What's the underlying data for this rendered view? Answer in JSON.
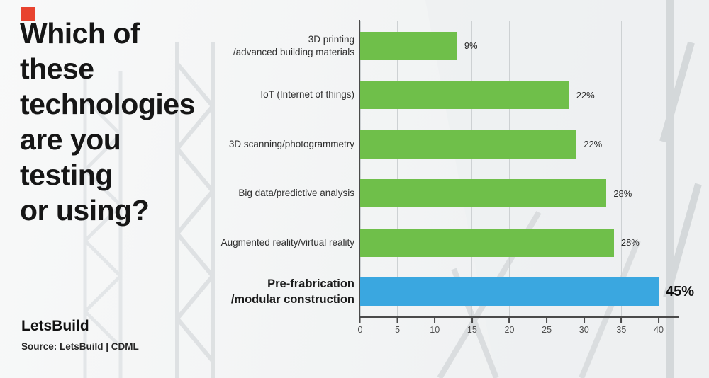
{
  "accent_red": "#e8432f",
  "title": "Which of\nthese\ntechnologies\nare you\ntesting\nor using?",
  "brand": "LetsBuild",
  "source": "Source: LetsBuild | CDML",
  "chart_data": {
    "type": "bar",
    "orientation": "horizontal",
    "title": "Which of these technologies are you testing or using?",
    "unit": "%",
    "categories": [
      "3D printing /advanced building materials",
      "IoT (Internet of things)",
      "3D scanning/photogrammetry",
      "Big data/predictive analysis",
      "Augmented reality/virtual reality",
      "Pre-frabrication /modular construction"
    ],
    "values": [
      9,
      22,
      22,
      28,
      28,
      45
    ],
    "axis": {
      "min": 0,
      "max": 40,
      "ticks": [
        0,
        5,
        10,
        15,
        20,
        25,
        30,
        35,
        40
      ]
    },
    "grid": true,
    "legend": "none",
    "bar_colors": {
      "default": "#6fbf4a",
      "highlight": "#3aa7e0"
    },
    "rows": [
      {
        "label": "3D printing\n/advanced building materials",
        "value": 9,
        "value_label": "9%",
        "display_length": 13,
        "highlight": false
      },
      {
        "label": "IoT (Internet of things)",
        "value": 22,
        "value_label": "22%",
        "display_length": 28,
        "highlight": false
      },
      {
        "label": "3D scanning/photogrammetry",
        "value": 22,
        "value_label": "22%",
        "display_length": 29,
        "highlight": false
      },
      {
        "label": "Big data/predictive analysis",
        "value": 28,
        "value_label": "28%",
        "display_length": 33,
        "highlight": false
      },
      {
        "label": "Augmented reality/virtual reality",
        "value": 28,
        "value_label": "28%",
        "display_length": 34,
        "highlight": false
      },
      {
        "label": "Pre-frabrication\n/modular construction",
        "value": 45,
        "value_label": "45%",
        "display_length": 40,
        "highlight": true
      }
    ]
  }
}
